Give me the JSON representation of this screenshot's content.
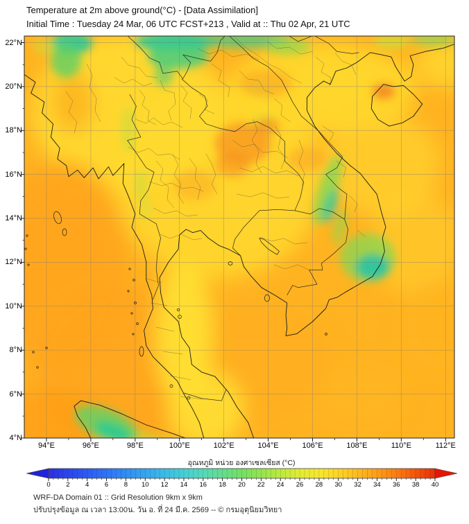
{
  "header": {
    "title": "Temperature at 2m above ground(°C) - [Data Assimilation]",
    "subtitle": "Initial Time : Tuesday 24 Mar, 06 UTC FCST+213 , Valid at :: Thu 02 Apr, 21 UTC"
  },
  "map": {
    "y_ticks": [
      "22°N",
      "20°N",
      "18°N",
      "16°N",
      "14°N",
      "12°N",
      "10°N",
      "8°N",
      "6°N",
      "4°N"
    ],
    "x_ticks": [
      "94°E",
      "96°E",
      "98°E",
      "100°E",
      "102°E",
      "104°E",
      "106°E",
      "108°E",
      "110°E",
      "112°E"
    ]
  },
  "colorbar": {
    "label": "อุณหภูมิ หน่วย องศาเซลเซียส (°C)",
    "ticks": [
      "0",
      "2",
      "4",
      "6",
      "8",
      "10",
      "12",
      "14",
      "16",
      "18",
      "20",
      "22",
      "24",
      "26",
      "28",
      "30",
      "32",
      "34",
      "36",
      "38",
      "40"
    ],
    "min": 0,
    "max": 40,
    "left_arrow_color": "#2222d8",
    "right_arrow_color": "#e61505",
    "stops": [
      {
        "v": 0,
        "c": "#2a2fe0"
      },
      {
        "v": 2,
        "c": "#2b45ec"
      },
      {
        "v": 4,
        "c": "#2c5cf2"
      },
      {
        "v": 6,
        "c": "#2e74f4"
      },
      {
        "v": 8,
        "c": "#308df2"
      },
      {
        "v": 10,
        "c": "#35a5ee"
      },
      {
        "v": 12,
        "c": "#3bbce6"
      },
      {
        "v": 14,
        "c": "#46cfd4"
      },
      {
        "v": 16,
        "c": "#55d9b5"
      },
      {
        "v": 18,
        "c": "#63dd8d"
      },
      {
        "v": 20,
        "c": "#74e063"
      },
      {
        "v": 22,
        "c": "#95e44c"
      },
      {
        "v": 24,
        "c": "#bce93c"
      },
      {
        "v": 26,
        "c": "#e2ec32"
      },
      {
        "v": 28,
        "c": "#f7e72b"
      },
      {
        "v": 30,
        "c": "#fcd425"
      },
      {
        "v": 32,
        "c": "#feba1e"
      },
      {
        "v": 34,
        "c": "#fe9d17"
      },
      {
        "v": 36,
        "c": "#fb7d10"
      },
      {
        "v": 38,
        "c": "#f5560a"
      },
      {
        "v": 40,
        "c": "#ec2e06"
      }
    ]
  },
  "footer": {
    "line1": "WRF-DA Domain 01 :: Grid Resolution 9km x 9km",
    "line2": "ปรับปรุงข้อมูล ณ เวลา 13:00น. วัน อ. ที่ 24 มี.ค. 2569 -- © กรมอุตุนิยมวิทยา"
  },
  "palette": {
    "map_base": "#ffb321",
    "warm_yellow": "#ffd92e",
    "deep_orange": "#ffa51c",
    "cool_green": "#5ed167",
    "cool_teal": "#2fc996"
  },
  "chart_data": {
    "type": "heatmap",
    "title": "Temperature at 2m above ground(°C) - [Data Assimilation]",
    "xlabel": "Longitude",
    "ylabel": "Latitude",
    "x_ticks": [
      "94°E",
      "96°E",
      "98°E",
      "100°E",
      "102°E",
      "104°E",
      "106°E",
      "108°E",
      "110°E",
      "112°E"
    ],
    "y_ticks": [
      "22°N",
      "20°N",
      "18°N",
      "16°N",
      "14°N",
      "12°N",
      "10°N",
      "8°N",
      "6°N",
      "4°N"
    ],
    "lon_range": [
      93.0,
      112.45
    ],
    "lat_range": [
      4.0,
      22.3
    ],
    "colorbar": {
      "label": "อุณหภูมิ หน่วย องศาเซลเซียส (°C)",
      "range": [
        0,
        40
      ],
      "tick_step": 2,
      "unit": "°C"
    },
    "field_summary": "Field mostly 28–33°C (yellow–orange). Cooler 18–24°C (green/teal) patches: N Myanmar & S China band near 21–22.3°N, central Vietnam coast ~14–16°N, S Vietnam highlands ~12°N/108.5°E, N Sumatra ~4.5°N/96.5°E. Warmer ~33–34°C over Andaman Sea, NE Thailand/Laos spots and NW Hainan."
  }
}
